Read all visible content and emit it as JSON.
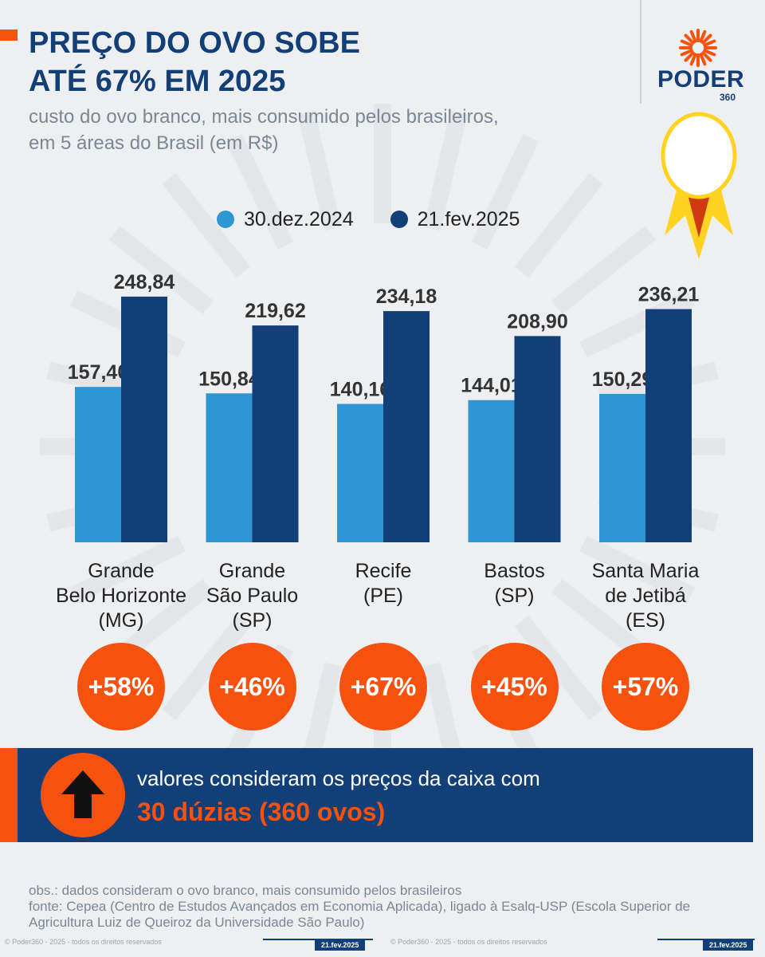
{
  "header": {
    "title_line1": "PREÇO DO OVO SOBE",
    "title_line2": "ATÉ 67% EM 2025",
    "subtitle": "custo do ovo branco, mais consumido pelos brasileiros, em 5 áreas do Brasil (em R$)"
  },
  "logo": {
    "text": "PODER",
    "sub": "360"
  },
  "colors": {
    "series1": "#2e96d3",
    "series2": "#123f78",
    "accent": "#f5520f",
    "egg_flame": "#ffd320"
  },
  "chart_data": {
    "type": "bar",
    "title": "PREÇO DO OVO SOBE ATÉ 67% EM 2025",
    "subtitle": "custo do ovo branco, mais consumido pelos brasileiros, em 5 áreas do Brasil (em R$)",
    "categories": [
      [
        "Grande",
        "Belo Horizonte",
        "(MG)"
      ],
      [
        "Grande",
        "São Paulo",
        "(SP)"
      ],
      [
        "Recife",
        "(PE)"
      ],
      [
        "Bastos",
        "(SP)"
      ],
      [
        "Santa Maria",
        "de Jetibá",
        "(ES)"
      ]
    ],
    "series": [
      {
        "name": "30.dez.2024",
        "values": [
          157.4,
          150.84,
          140.16,
          144.01,
          150.29
        ],
        "labels": [
          "157,40",
          "150,84",
          "140,16",
          "144,01",
          "150,29"
        ]
      },
      {
        "name": "21.fev.2025",
        "values": [
          248.84,
          219.62,
          234.18,
          208.9,
          236.21
        ],
        "labels": [
          "248,84",
          "219,62",
          "234,18",
          "208,90",
          "236,21"
        ]
      }
    ],
    "changes": [
      "+58%",
      "+46%",
      "+67%",
      "+45%",
      "+57%"
    ],
    "legend_position": "top",
    "grid": false
  },
  "note": {
    "line1": "valores consideram os preços da caixa com",
    "line2": "30 dúzias (360 ovos)"
  },
  "footnote": {
    "obs": "obs.: dados consideram o ovo branco, mais consumido pelos brasileiros",
    "source": "fonte: Cepea (Centro de Estudos Avançados em Economia Aplicada), ligado à Esalq-USP (Escola Superior de Agricultura Luiz de Queiroz da Universidade São Paulo)"
  },
  "footer": {
    "copyright": "© Poder360 - 2025 - todos os direitos reservados",
    "date": "21.fev.2025"
  }
}
